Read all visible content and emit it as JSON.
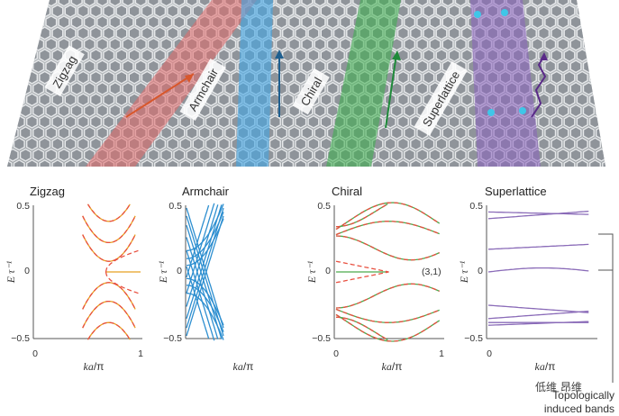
{
  "ribbons": {
    "labels": [
      "Zigzag",
      "Armchair",
      "Chiral",
      "Superlattice"
    ]
  },
  "panels": [
    {
      "title": "Zigzag",
      "colors": {
        "main": "#e8a020",
        "dashed": "#e85040"
      }
    },
    {
      "title": "Armchair",
      "colors": {
        "main": "#2e8fd0"
      }
    },
    {
      "title": "Chiral",
      "annotation": "(3,1)",
      "colors": {
        "main": "#4caa4c",
        "dashed": "#e85040"
      }
    },
    {
      "title": "Superlattice",
      "colors": {
        "main": "#8a6bb8"
      }
    }
  ],
  "axis": {
    "y_ticks": [
      "0.5",
      "0",
      "−0.5"
    ],
    "x_ticks": [
      "0",
      "1"
    ],
    "x_label_italic": "ka",
    "x_label_rest": "/π",
    "y_label": "E τ⁻¹"
  },
  "annotations": {
    "topological_line1": "Topologically",
    "topological_line2": "induced bands"
  },
  "watermark": "低维 昂维",
  "chart_data": [
    {
      "type": "line",
      "title": "Zigzag",
      "xlabel": "ka/π",
      "ylabel": "E τ⁻¹",
      "xlim": [
        0,
        1
      ],
      "ylim": [
        -0.5,
        0.5
      ],
      "note": "edge state flat band at E=0 for ka/π > 0.67; bulk bands solid, dashed overlay"
    },
    {
      "type": "line",
      "title": "Armchair",
      "xlabel": "ka/π",
      "ylabel": "E τ⁻¹",
      "xlim": [
        0,
        1
      ],
      "ylim": [
        -0.5,
        0.5
      ],
      "note": "many bulk subbands, gapped near E=0"
    },
    {
      "type": "line",
      "title": "Chiral",
      "xlabel": "ka/π",
      "ylabel": "E τ⁻¹",
      "xlim": [
        0,
        1
      ],
      "ylim": [
        -0.5,
        0.5
      ],
      "note": "(3,1) chiral ribbon, edge band near E=0 for ka/π < 0.5"
    },
    {
      "type": "line",
      "title": "Superlattice",
      "xlabel": "ka/π",
      "ylabel": "E τ⁻¹",
      "xlim": [
        0,
        1
      ],
      "ylim": [
        -0.5,
        0.5
      ],
      "note": "flat bands; topologically induced bands near E≈0.25 and E≈0"
    }
  ]
}
